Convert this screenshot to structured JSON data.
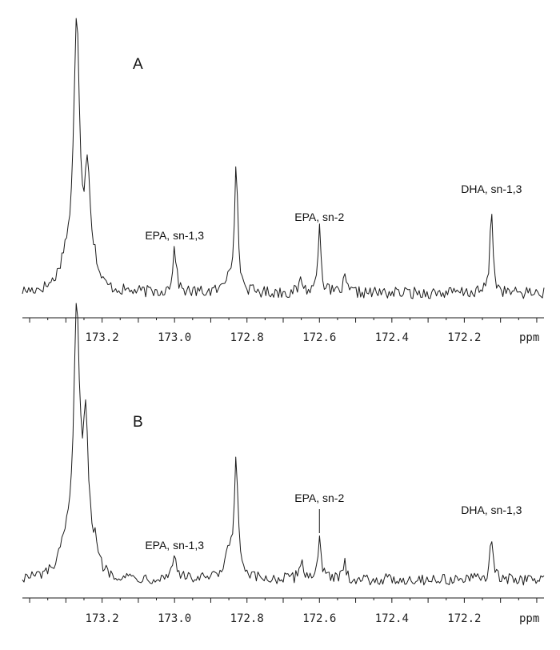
{
  "chart_data": [
    {
      "type": "line",
      "panel_label": "A",
      "xlabel": "ppm",
      "x_reversed": true,
      "xlim": [
        173.42,
        171.98
      ],
      "ticks": [
        {
          "value": 173.2,
          "label": "173.2"
        },
        {
          "value": 173.0,
          "label": "173.0"
        },
        {
          "value": 172.8,
          "label": "172.8"
        },
        {
          "value": 172.6,
          "label": "172.6"
        },
        {
          "value": 172.4,
          "label": "172.4"
        },
        {
          "value": 172.2,
          "label": "172.2"
        }
      ],
      "grid": false,
      "peaks": [
        {
          "x": 173.27,
          "height": 1.0,
          "width": 0.01
        },
        {
          "x": 173.24,
          "height": 0.42,
          "width": 0.009
        },
        {
          "x": 173.3,
          "height": 0.1,
          "width": 0.02
        },
        {
          "x": 173.22,
          "height": 0.06,
          "width": 0.01
        },
        {
          "x": 173.0,
          "height": 0.17,
          "width": 0.006
        },
        {
          "x": 172.85,
          "height": 0.06,
          "width": 0.01
        },
        {
          "x": 172.83,
          "height": 0.46,
          "width": 0.006
        },
        {
          "x": 172.65,
          "height": 0.05,
          "width": 0.006
        },
        {
          "x": 172.6,
          "height": 0.27,
          "width": 0.005
        },
        {
          "x": 172.53,
          "height": 0.05,
          "width": 0.006
        },
        {
          "x": 172.125,
          "height": 0.32,
          "width": 0.005
        }
      ],
      "annotations": [
        {
          "text": "EPA, sn-1,3",
          "x": 173.0,
          "leader": false
        },
        {
          "text": "EPA, sn-2",
          "x": 172.6,
          "leader": false
        },
        {
          "text": "DHA, sn-1,3",
          "x": 172.125,
          "leader": false
        }
      ]
    },
    {
      "type": "line",
      "panel_label": "B",
      "xlabel": "ppm",
      "x_reversed": true,
      "xlim": [
        173.42,
        171.98
      ],
      "ticks": [
        {
          "value": 173.2,
          "label": "173.2"
        },
        {
          "value": 173.0,
          "label": "173.0"
        },
        {
          "value": 172.8,
          "label": "172.8"
        },
        {
          "value": 172.6,
          "label": "172.6"
        },
        {
          "value": 172.4,
          "label": "172.4"
        },
        {
          "value": 172.2,
          "label": "172.2"
        }
      ],
      "grid": false,
      "peaks": [
        {
          "x": 173.27,
          "height": 1.0,
          "width": 0.01
        },
        {
          "x": 173.245,
          "height": 0.55,
          "width": 0.009
        },
        {
          "x": 173.3,
          "height": 0.1,
          "width": 0.02
        },
        {
          "x": 173.22,
          "height": 0.08,
          "width": 0.01
        },
        {
          "x": 173.0,
          "height": 0.09,
          "width": 0.008
        },
        {
          "x": 172.85,
          "height": 0.1,
          "width": 0.01
        },
        {
          "x": 172.83,
          "height": 0.48,
          "width": 0.006
        },
        {
          "x": 172.65,
          "height": 0.08,
          "width": 0.006
        },
        {
          "x": 172.6,
          "height": 0.18,
          "width": 0.005
        },
        {
          "x": 172.53,
          "height": 0.06,
          "width": 0.006
        },
        {
          "x": 172.125,
          "height": 0.17,
          "width": 0.005
        }
      ],
      "annotations": [
        {
          "text": "EPA, sn-1,3",
          "x": 173.0,
          "leader": false
        },
        {
          "text": "EPA, sn-2",
          "x": 172.6,
          "leader": true
        },
        {
          "text": "DHA, sn-1,3",
          "x": 172.125,
          "leader": false
        }
      ]
    }
  ]
}
